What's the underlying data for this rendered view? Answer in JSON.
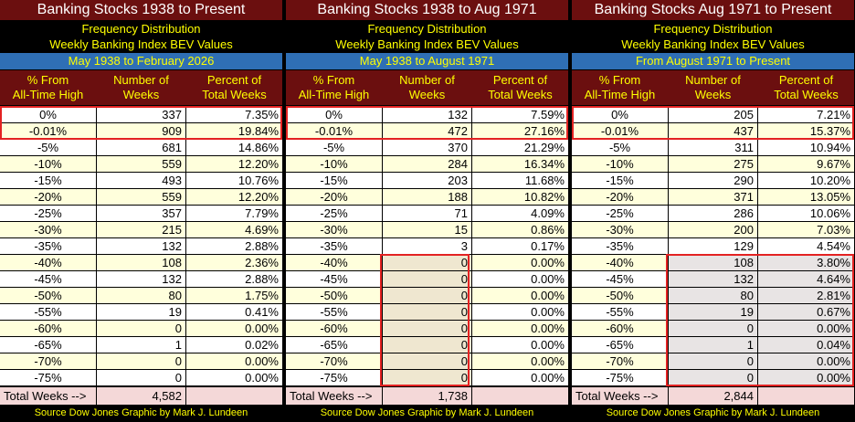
{
  "colors": {
    "title_bg": "#6b0f0f",
    "range_bg": "#2f6fb5",
    "yellow": "#ffff00",
    "total_bg": "#f4d8d8",
    "highlight": "#e32222"
  },
  "panels": [
    {
      "title": "Banking Stocks 1938 to Present",
      "subtitle1": "Frequency Distribution",
      "subtitle2": "Weekly Banking Index BEV Values",
      "range": "May 1938 to February 2026",
      "headers": {
        "col1a": "% From",
        "col1b": "All-Time High",
        "col2a": "Number of",
        "col2b": "Weeks",
        "col3a": "Percent of",
        "col3b": "Total Weeks"
      },
      "rows": [
        {
          "pct": "0%",
          "weeks": "337",
          "share": "7.35%"
        },
        {
          "pct": "-0.01%",
          "weeks": "909",
          "share": "19.84%"
        },
        {
          "pct": "-5%",
          "weeks": "681",
          "share": "14.86%"
        },
        {
          "pct": "-10%",
          "weeks": "559",
          "share": "12.20%"
        },
        {
          "pct": "-15%",
          "weeks": "493",
          "share": "10.76%"
        },
        {
          "pct": "-20%",
          "weeks": "559",
          "share": "12.20%"
        },
        {
          "pct": "-25%",
          "weeks": "357",
          "share": "7.79%"
        },
        {
          "pct": "-30%",
          "weeks": "215",
          "share": "4.69%"
        },
        {
          "pct": "-35%",
          "weeks": "132",
          "share": "2.88%"
        },
        {
          "pct": "-40%",
          "weeks": "108",
          "share": "2.36%"
        },
        {
          "pct": "-45%",
          "weeks": "132",
          "share": "2.88%"
        },
        {
          "pct": "-50%",
          "weeks": "80",
          "share": "1.75%"
        },
        {
          "pct": "-55%",
          "weeks": "19",
          "share": "0.41%"
        },
        {
          "pct": "-60%",
          "weeks": "0",
          "share": "0.00%"
        },
        {
          "pct": "-65%",
          "weeks": "1",
          "share": "0.02%"
        },
        {
          "pct": "-70%",
          "weeks": "0",
          "share": "0.00%"
        },
        {
          "pct": "-75%",
          "weeks": "0",
          "share": "0.00%"
        }
      ],
      "total_label": "Total Weeks -->",
      "total_value": "4,582",
      "source": "Source Dow Jones   Graphic by Mark J. Lundeen"
    },
    {
      "title": "Banking Stocks 1938 to Aug 1971",
      "subtitle1": "Frequency Distribution",
      "subtitle2": "Weekly Banking Index BEV Values",
      "range": "May 1938 to August 1971",
      "headers": {
        "col1a": "% From",
        "col1b": "All-Time High",
        "col2a": "Number of",
        "col2b": "Weeks",
        "col3a": "Percent of",
        "col3b": "Total Weeks"
      },
      "rows": [
        {
          "pct": "0%",
          "weeks": "132",
          "share": "7.59%"
        },
        {
          "pct": "-0.01%",
          "weeks": "472",
          "share": "27.16%"
        },
        {
          "pct": "-5%",
          "weeks": "370",
          "share": "21.29%"
        },
        {
          "pct": "-10%",
          "weeks": "284",
          "share": "16.34%"
        },
        {
          "pct": "-15%",
          "weeks": "203",
          "share": "11.68%"
        },
        {
          "pct": "-20%",
          "weeks": "188",
          "share": "10.82%"
        },
        {
          "pct": "-25%",
          "weeks": "71",
          "share": "4.09%"
        },
        {
          "pct": "-30%",
          "weeks": "15",
          "share": "0.86%"
        },
        {
          "pct": "-35%",
          "weeks": "3",
          "share": "0.17%"
        },
        {
          "pct": "-40%",
          "weeks": "0",
          "share": "0.00%"
        },
        {
          "pct": "-45%",
          "weeks": "0",
          "share": "0.00%"
        },
        {
          "pct": "-50%",
          "weeks": "0",
          "share": "0.00%"
        },
        {
          "pct": "-55%",
          "weeks": "0",
          "share": "0.00%"
        },
        {
          "pct": "-60%",
          "weeks": "0",
          "share": "0.00%"
        },
        {
          "pct": "-65%",
          "weeks": "0",
          "share": "0.00%"
        },
        {
          "pct": "-70%",
          "weeks": "0",
          "share": "0.00%"
        },
        {
          "pct": "-75%",
          "weeks": "0",
          "share": "0.00%"
        }
      ],
      "total_label": "Total Weeks -->",
      "total_value": "1,738",
      "source": "Source Dow Jones   Graphic by Mark J. Lundeen"
    },
    {
      "title": "Banking Stocks Aug 1971 to Present",
      "subtitle1": "Frequency Distribution",
      "subtitle2": "Weekly Banking Index BEV Values",
      "range": "From August 1971 to Present",
      "headers": {
        "col1a": "% From",
        "col1b": "All-Time High",
        "col2a": "Number of",
        "col2b": "Weeks",
        "col3a": "Percent of",
        "col3b": "Total Weeks"
      },
      "rows": [
        {
          "pct": "0%",
          "weeks": "205",
          "share": "7.21%"
        },
        {
          "pct": "-0.01%",
          "weeks": "437",
          "share": "15.37%"
        },
        {
          "pct": "-5%",
          "weeks": "311",
          "share": "10.94%"
        },
        {
          "pct": "-10%",
          "weeks": "275",
          "share": "9.67%"
        },
        {
          "pct": "-15%",
          "weeks": "290",
          "share": "10.20%"
        },
        {
          "pct": "-20%",
          "weeks": "371",
          "share": "13.05%"
        },
        {
          "pct": "-25%",
          "weeks": "286",
          "share": "10.06%"
        },
        {
          "pct": "-30%",
          "weeks": "200",
          "share": "7.03%"
        },
        {
          "pct": "-35%",
          "weeks": "129",
          "share": "4.54%"
        },
        {
          "pct": "-40%",
          "weeks": "108",
          "share": "3.80%"
        },
        {
          "pct": "-45%",
          "weeks": "132",
          "share": "4.64%"
        },
        {
          "pct": "-50%",
          "weeks": "80",
          "share": "2.81%"
        },
        {
          "pct": "-55%",
          "weeks": "19",
          "share": "0.67%"
        },
        {
          "pct": "-60%",
          "weeks": "0",
          "share": "0.00%"
        },
        {
          "pct": "-65%",
          "weeks": "1",
          "share": "0.04%"
        },
        {
          "pct": "-70%",
          "weeks": "0",
          "share": "0.00%"
        },
        {
          "pct": "-75%",
          "weeks": "0",
          "share": "0.00%"
        }
      ],
      "total_label": "Total Weeks -->",
      "total_value": "2,844",
      "source": "Source Dow Jones   Graphic by Mark J. Lundeen"
    }
  ]
}
